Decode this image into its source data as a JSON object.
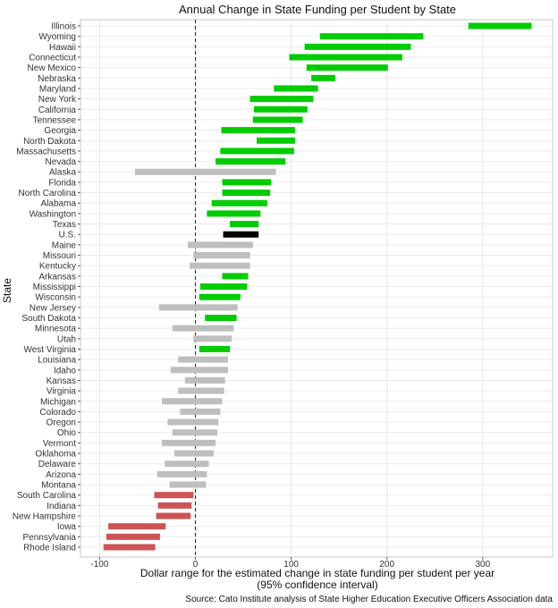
{
  "chart_data": {
    "type": "range-bar",
    "title": "Annual Change in State Funding per Student by State",
    "xlabel": "Dollar range for the estimated change in state funding per student per year",
    "xlabel2": "(95% confidence interval)",
    "ylabel": "State",
    "source": "Source: Cato Institute analysis of State Higher Education Executive Officers Association data",
    "xlim": [
      -120,
      373
    ],
    "xticks": [
      -100,
      0,
      100,
      200,
      300
    ],
    "reference_line": 0,
    "grid": true,
    "colors": {
      "increase": "#00cc00",
      "not_significant": "#bebebe",
      "decrease": "#cd5454",
      "us": "#000000"
    },
    "rows": [
      {
        "state": "Illinois",
        "low": 285,
        "high": 351,
        "class": "increase"
      },
      {
        "state": "Wyoming",
        "low": 130,
        "high": 238,
        "class": "increase"
      },
      {
        "state": "Hawaii",
        "low": 114,
        "high": 225,
        "class": "increase"
      },
      {
        "state": "Connecticut",
        "low": 98,
        "high": 216,
        "class": "increase"
      },
      {
        "state": "New Mexico",
        "low": 116,
        "high": 201,
        "class": "increase"
      },
      {
        "state": "Nebraska",
        "low": 121,
        "high": 146,
        "class": "increase"
      },
      {
        "state": "Maryland",
        "low": 82,
        "high": 128,
        "class": "increase"
      },
      {
        "state": "New York",
        "low": 57,
        "high": 123,
        "class": "increase"
      },
      {
        "state": "California",
        "low": 61,
        "high": 117,
        "class": "increase"
      },
      {
        "state": "Tennessee",
        "low": 60,
        "high": 112,
        "class": "increase"
      },
      {
        "state": "Georgia",
        "low": 27,
        "high": 104,
        "class": "increase"
      },
      {
        "state": "North Dakota",
        "low": 64,
        "high": 104,
        "class": "increase"
      },
      {
        "state": "Massachusetts",
        "low": 26,
        "high": 103,
        "class": "increase"
      },
      {
        "state": "Nevada",
        "low": 21,
        "high": 94,
        "class": "increase"
      },
      {
        "state": "Alaska",
        "low": -63,
        "high": 84,
        "class": "not_significant"
      },
      {
        "state": "Florida",
        "low": 28,
        "high": 79,
        "class": "increase"
      },
      {
        "state": "North Carolina",
        "low": 28,
        "high": 78,
        "class": "increase"
      },
      {
        "state": "Alabama",
        "low": 17,
        "high": 75,
        "class": "increase"
      },
      {
        "state": "Washington",
        "low": 12,
        "high": 68,
        "class": "increase"
      },
      {
        "state": "Texas",
        "low": 36,
        "high": 66,
        "class": "increase"
      },
      {
        "state": "U.S.",
        "low": 29,
        "high": 66,
        "class": "us"
      },
      {
        "state": "Maine",
        "low": -8,
        "high": 60,
        "class": "not_significant"
      },
      {
        "state": "Missouri",
        "low": -2,
        "high": 57,
        "class": "not_significant"
      },
      {
        "state": "Kentucky",
        "low": -6,
        "high": 57,
        "class": "not_significant"
      },
      {
        "state": "Arkansas",
        "low": 28,
        "high": 55,
        "class": "increase"
      },
      {
        "state": "Mississippi",
        "low": 5,
        "high": 54,
        "class": "increase"
      },
      {
        "state": "Wisconsin",
        "low": 4,
        "high": 47,
        "class": "increase"
      },
      {
        "state": "New Jersey",
        "low": -38,
        "high": 44,
        "class": "not_significant"
      },
      {
        "state": "South Dakota",
        "low": 10,
        "high": 43,
        "class": "increase"
      },
      {
        "state": "Minnesota",
        "low": -24,
        "high": 40,
        "class": "not_significant"
      },
      {
        "state": "Utah",
        "low": -2,
        "high": 38,
        "class": "not_significant"
      },
      {
        "state": "West Virginia",
        "low": 4,
        "high": 36,
        "class": "increase"
      },
      {
        "state": "Louisiana",
        "low": -18,
        "high": 34,
        "class": "not_significant"
      },
      {
        "state": "Idaho",
        "low": -26,
        "high": 34,
        "class": "not_significant"
      },
      {
        "state": "Kansas",
        "low": -11,
        "high": 31,
        "class": "not_significant"
      },
      {
        "state": "Virginia",
        "low": -18,
        "high": 30,
        "class": "not_significant"
      },
      {
        "state": "Michigan",
        "low": -35,
        "high": 28,
        "class": "not_significant"
      },
      {
        "state": "Colorado",
        "low": -16,
        "high": 26,
        "class": "not_significant"
      },
      {
        "state": "Oregon",
        "low": -29,
        "high": 24,
        "class": "not_significant"
      },
      {
        "state": "Ohio",
        "low": -24,
        "high": 23,
        "class": "not_significant"
      },
      {
        "state": "Vermont",
        "low": -35,
        "high": 21,
        "class": "not_significant"
      },
      {
        "state": "Oklahoma",
        "low": -22,
        "high": 19,
        "class": "not_significant"
      },
      {
        "state": "Delaware",
        "low": -32,
        "high": 14,
        "class": "not_significant"
      },
      {
        "state": "Arizona",
        "low": -40,
        "high": 12,
        "class": "not_significant"
      },
      {
        "state": "Montana",
        "low": -27,
        "high": 11,
        "class": "not_significant"
      },
      {
        "state": "South Carolina",
        "low": -43,
        "high": -2,
        "class": "decrease"
      },
      {
        "state": "Indiana",
        "low": -39,
        "high": -4,
        "class": "decrease"
      },
      {
        "state": "New Hampshire",
        "low": -41,
        "high": -5,
        "class": "decrease"
      },
      {
        "state": "Iowa",
        "low": -91,
        "high": -31,
        "class": "decrease"
      },
      {
        "state": "Pennsylvania",
        "low": -93,
        "high": -37,
        "class": "decrease"
      },
      {
        "state": "Rhode Island",
        "low": -96,
        "high": -42,
        "class": "decrease"
      }
    ]
  }
}
